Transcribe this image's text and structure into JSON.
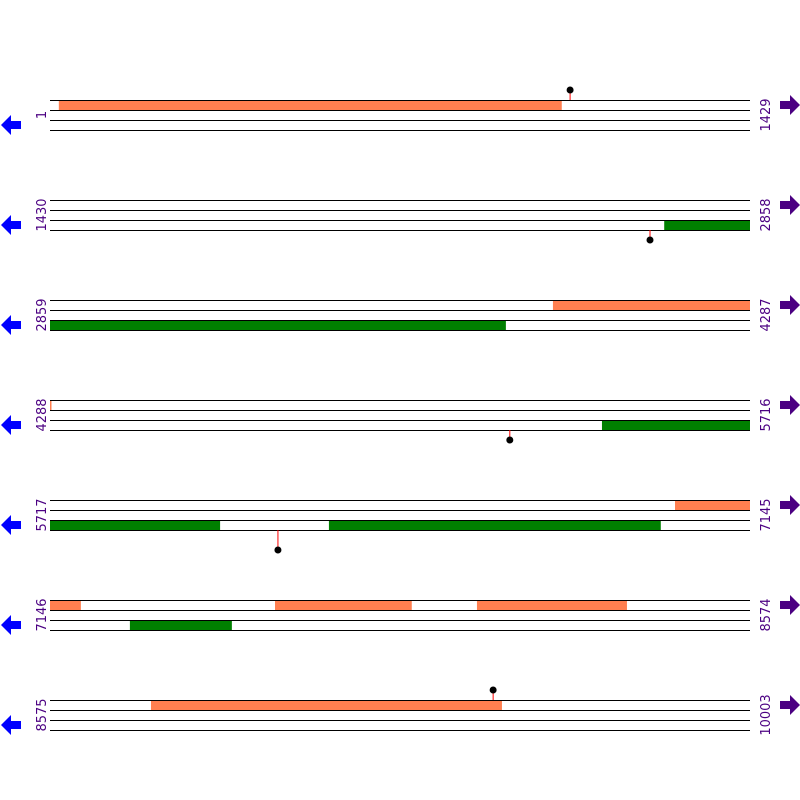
{
  "colors": {
    "forward_feature": "#ff7f50",
    "reverse_feature": "#008000",
    "track_line": "#000000",
    "marker_stem": "#ff0000",
    "marker_dot": "#000000",
    "left_arrow": "#0000ff",
    "right_arrow": "#4b0082",
    "label": "#4b0082"
  },
  "icons": {
    "left": "arrow-left-icon",
    "right": "arrow-right-icon"
  },
  "rows": [
    {
      "start": "1",
      "end": "1429",
      "from": 1,
      "to": 1429,
      "features": [
        {
          "track": "top",
          "from": 19,
          "to": 1045
        }
      ],
      "markers": [
        {
          "track": "top",
          "pos": 1062
        }
      ]
    },
    {
      "start": "1430",
      "end": "2858",
      "from": 1430,
      "to": 2858,
      "features": [
        {
          "track": "bottom",
          "from": 2683,
          "to": 2858
        }
      ],
      "markers": [
        {
          "track": "bottom",
          "pos": 2654
        }
      ]
    },
    {
      "start": "2859",
      "end": "4287",
      "from": 2859,
      "to": 4287,
      "features": [
        {
          "track": "top",
          "from": 3885,
          "to": 4287
        },
        {
          "track": "bottom",
          "from": 2859,
          "to": 3789
        }
      ],
      "markers": []
    },
    {
      "start": "4288",
      "end": "5716",
      "from": 4288,
      "to": 5716,
      "features": [
        {
          "track": "top",
          "from": 4288,
          "to": 4289
        },
        {
          "track": "bottom",
          "from": 5414,
          "to": 5716
        }
      ],
      "markers": [
        {
          "track": "bottom",
          "pos": 5226
        }
      ]
    },
    {
      "start": "5717",
      "end": "7145",
      "from": 5717,
      "to": 7145,
      "features": [
        {
          "track": "top",
          "from": 6992,
          "to": 7145
        },
        {
          "track": "bottom",
          "from": 5717,
          "to": 6064
        },
        {
          "track": "bottom",
          "from": 6286,
          "to": 6963
        }
      ],
      "markers": [
        {
          "track": "bottom",
          "pos": 6182,
          "long": true
        }
      ]
    },
    {
      "start": "7146",
      "end": "8574",
      "from": 7146,
      "to": 8574,
      "features": [
        {
          "track": "top",
          "from": 7146,
          "to": 7209
        },
        {
          "track": "top",
          "from": 7605,
          "to": 7884
        },
        {
          "track": "top",
          "from": 8017,
          "to": 8323
        },
        {
          "track": "bottom",
          "from": 7309,
          "to": 7517
        }
      ],
      "markers": []
    },
    {
      "start": "8575",
      "end": "10003",
      "from": 8575,
      "to": 10003,
      "features": [
        {
          "track": "top",
          "from": 8781,
          "to": 9497
        }
      ],
      "markers": [
        {
          "track": "top",
          "pos": 9479
        }
      ]
    }
  ]
}
